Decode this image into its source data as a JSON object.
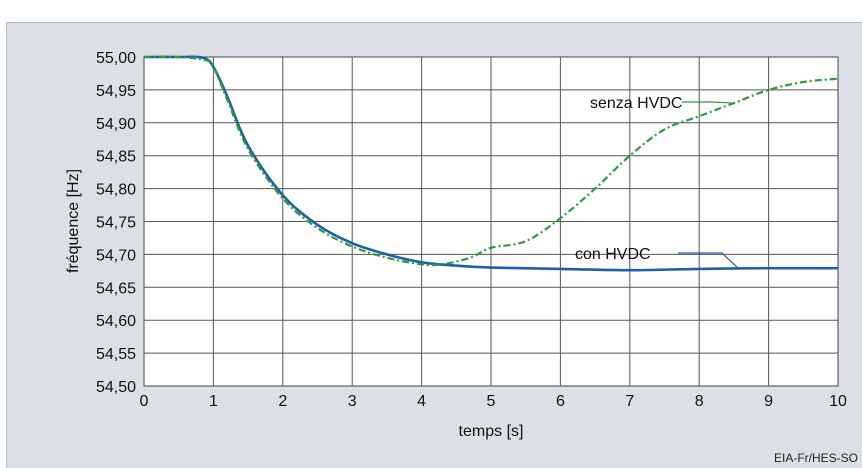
{
  "chart_data": {
    "type": "line",
    "title": "",
    "xlabel": "temps [s]",
    "ylabel": "fréquence [Hz]",
    "xlim": [
      0,
      10
    ],
    "ylim": [
      54.5,
      55.0
    ],
    "xticks": [
      "0",
      "1",
      "2",
      "3",
      "4",
      "5",
      "6",
      "7",
      "8",
      "9",
      "10"
    ],
    "yticks": [
      "54,50",
      "54,55",
      "54,60",
      "54,65",
      "54,70",
      "54,75",
      "54,80",
      "54,85",
      "54,90",
      "54,95",
      "55,00"
    ],
    "grid": true,
    "series": [
      {
        "name": "senza HVDC",
        "color": "#1f5fa8",
        "style": "solid",
        "x": [
          0,
          0.5,
          0.85,
          1.0,
          1.2,
          1.5,
          2.0,
          2.5,
          3.0,
          3.5,
          4.0,
          4.5,
          5.0,
          6.0,
          7.0,
          8.0,
          9.0,
          10.0
        ],
        "y": [
          55.0,
          55.0,
          54.999,
          54.985,
          54.94,
          54.865,
          54.79,
          54.745,
          54.717,
          54.7,
          54.688,
          54.683,
          54.68,
          54.678,
          54.676,
          54.678,
          54.679,
          54.679
        ]
      },
      {
        "name": "con HVDC",
        "color": "#2e9a3a",
        "style": "dashdot",
        "x": [
          0,
          0.5,
          0.9,
          1.0,
          1.2,
          1.5,
          2.0,
          2.5,
          3.0,
          3.5,
          4.0,
          4.3,
          4.7,
          5.0,
          5.5,
          6.0,
          6.5,
          7.0,
          7.5,
          8.0,
          8.5,
          9.0,
          9.5,
          10.0
        ],
        "y": [
          55.0,
          55.0,
          54.995,
          54.985,
          54.935,
          54.86,
          54.785,
          54.74,
          54.712,
          54.695,
          54.685,
          54.685,
          54.695,
          54.71,
          54.72,
          54.755,
          54.8,
          54.85,
          54.89,
          54.91,
          54.93,
          54.95,
          54.962,
          54.967
        ]
      }
    ],
    "annotations": [
      "con HVDC",
      "senza HVDC"
    ]
  },
  "credit": "EIA-Fr/HES-SO"
}
